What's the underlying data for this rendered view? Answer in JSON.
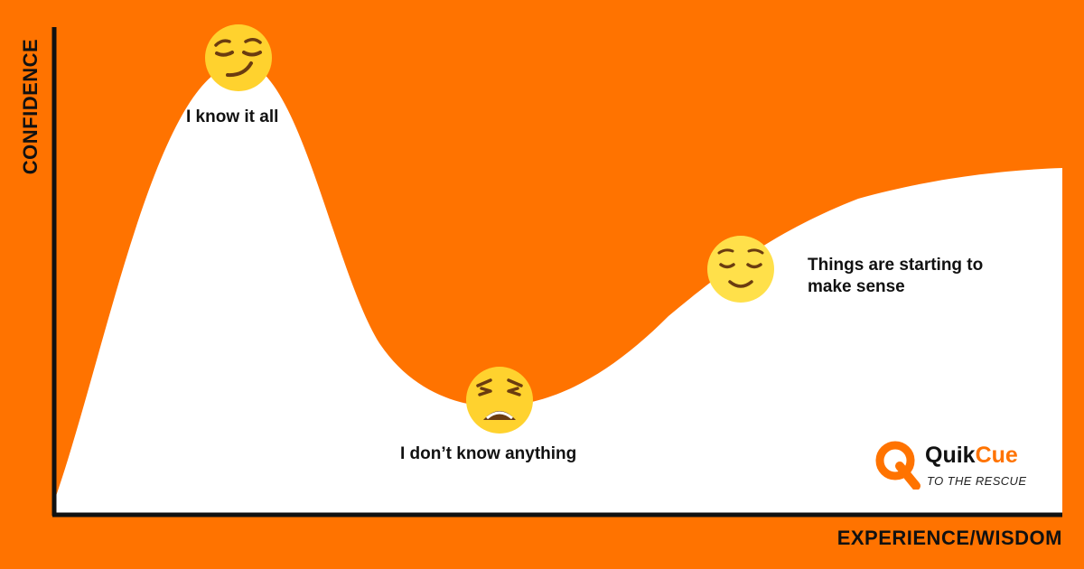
{
  "axes": {
    "y_title": "CONFIDENCE",
    "x_title": "EXPERIENCE/WISDOM"
  },
  "stages": [
    {
      "label": "I know it all",
      "emoji": "smirking-face-icon"
    },
    {
      "label": "I don’t know anything",
      "emoji": "weary-face-icon"
    },
    {
      "label": "Things are starting to make sense",
      "emoji": "relieved-face-icon"
    }
  ],
  "logo": {
    "word_part1": "Quik",
    "word_part2": "Cue",
    "tagline": "TO THE RESCUE"
  },
  "colors": {
    "background": "#FF7300",
    "curve_fill": "#FFFFFF",
    "axis": "#111111",
    "emoji_face": "#FFD22E",
    "emoji_feature": "#6B3C10"
  }
}
